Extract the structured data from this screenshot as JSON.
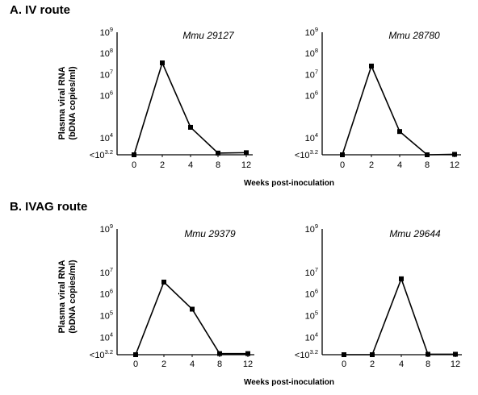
{
  "sections": [
    {
      "title": "A.  IV route",
      "ylabel_line1": "Plasma viral RNA",
      "ylabel_line2": "(bDNA copies/ml)",
      "xlabel": "Weeks post-inoculation"
    },
    {
      "title": "B.  IVAG route",
      "ylabel_line1": "Plasma viral RNA",
      "ylabel_line2": "(bDNA copies/ml)",
      "xlabel": "Weeks post-inoculation"
    }
  ],
  "chart_data": [
    {
      "type": "line",
      "section": 0,
      "title": "Mmu 29127",
      "xlabel": "Weeks post-inoculation",
      "ylabel": "Plasma viral RNA (bDNA copies/ml)",
      "x_tick_labels": [
        "0",
        "2",
        "4",
        "8",
        "12"
      ],
      "y_tick_labels": [
        {
          "base": "<10",
          "exp": "3.2",
          "log10": 3.2
        },
        {
          "base": "10",
          "exp": "4",
          "log10": 4
        },
        {
          "base": "10",
          "exp": "6",
          "log10": 6
        },
        {
          "base": "10",
          "exp": "7",
          "log10": 7
        },
        {
          "base": "10",
          "exp": "8",
          "log10": 8
        },
        {
          "base": "10",
          "exp": "9",
          "log10": 9
        }
      ],
      "y_scale": "log10",
      "ylim_log10": [
        3.2,
        9
      ],
      "x_category_index": [
        0,
        1,
        2,
        3,
        4
      ],
      "log10_values": [
        3.2,
        7.55,
        4.5,
        3.28,
        3.3
      ]
    },
    {
      "type": "line",
      "section": 0,
      "title": "Mmu 28780",
      "xlabel": "Weeks post-inoculation",
      "ylabel": "Plasma viral RNA (bDNA copies/ml)",
      "x_tick_labels": [
        "0",
        "2",
        "4",
        "8",
        "12"
      ],
      "y_tick_labels": [
        {
          "base": "<10",
          "exp": "3.2",
          "log10": 3.2
        },
        {
          "base": "10",
          "exp": "4",
          "log10": 4
        },
        {
          "base": "10",
          "exp": "6",
          "log10": 6
        },
        {
          "base": "10",
          "exp": "7",
          "log10": 7
        },
        {
          "base": "10",
          "exp": "8",
          "log10": 8
        },
        {
          "base": "10",
          "exp": "9",
          "log10": 9
        }
      ],
      "y_scale": "log10",
      "ylim_log10": [
        3.2,
        9
      ],
      "x_category_index": [
        0,
        1,
        2,
        3,
        4
      ],
      "log10_values": [
        3.2,
        7.4,
        4.3,
        3.2,
        3.22
      ]
    },
    {
      "type": "line",
      "section": 1,
      "title": "Mmu 29379",
      "xlabel": "Weeks post-inoculation",
      "ylabel": "Plasma viral RNA (bDNA copies/ml)",
      "x_tick_labels": [
        "0",
        "2",
        "4",
        "8",
        "12"
      ],
      "y_tick_labels": [
        {
          "base": "<10",
          "exp": "3.2",
          "log10": 3.2
        },
        {
          "base": "10",
          "exp": "4",
          "log10": 4
        },
        {
          "base": "10",
          "exp": "5",
          "log10": 5
        },
        {
          "base": "10",
          "exp": "6",
          "log10": 6
        },
        {
          "base": "10",
          "exp": "7",
          "log10": 7
        },
        {
          "base": "10",
          "exp": "9",
          "log10": 9
        }
      ],
      "y_scale": "log10",
      "ylim_log10": [
        3.2,
        9
      ],
      "x_category_index": [
        0,
        1,
        2,
        3,
        4
      ],
      "log10_values": [
        3.2,
        6.55,
        5.3,
        3.25,
        3.25
      ]
    },
    {
      "type": "line",
      "section": 1,
      "title": "Mmu 29644",
      "xlabel": "Weeks post-inoculation",
      "ylabel": "Plasma viral RNA (bDNA copies/ml)",
      "x_tick_labels": [
        "0",
        "2",
        "4",
        "8",
        "12"
      ],
      "y_tick_labels": [
        {
          "base": "<10",
          "exp": "3.2",
          "log10": 3.2
        },
        {
          "base": "10",
          "exp": "4",
          "log10": 4
        },
        {
          "base": "10",
          "exp": "5",
          "log10": 5
        },
        {
          "base": "10",
          "exp": "6",
          "log10": 6
        },
        {
          "base": "10",
          "exp": "7",
          "log10": 7
        },
        {
          "base": "10",
          "exp": "9",
          "log10": 9
        }
      ],
      "y_scale": "log10",
      "ylim_log10": [
        3.2,
        9
      ],
      "x_category_index": [
        0,
        1,
        2,
        3,
        4
      ],
      "log10_values": [
        3.2,
        3.2,
        6.7,
        3.22,
        3.22
      ]
    }
  ]
}
